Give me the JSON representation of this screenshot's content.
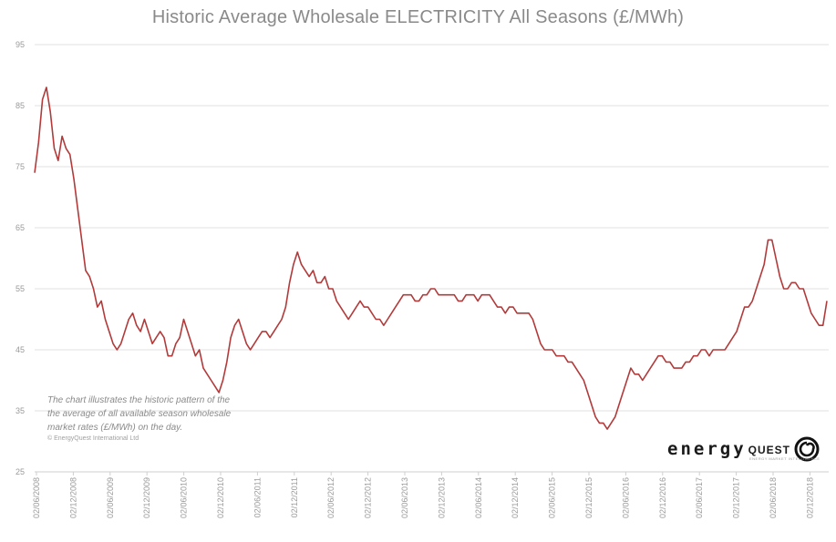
{
  "chart_data": {
    "type": "line",
    "title": "Historic Average Wholesale ELECTRICITY All Seasons (£/MWh)",
    "xlabel": "",
    "ylabel": "",
    "ylim": [
      25,
      95
    ],
    "yticks": [
      95,
      85,
      75,
      65,
      55,
      45,
      35,
      25
    ],
    "grid": true,
    "legend": "none",
    "line_color": "#b23a3a",
    "xticks": [
      "02/06/2008",
      "02/12/2008",
      "02/06/2009",
      "02/12/2009",
      "02/06/2010",
      "02/12/2010",
      "02/06/2011",
      "02/12/2011",
      "02/06/2012",
      "02/12/2012",
      "02/06/2013",
      "02/12/2013",
      "02/06/2014",
      "02/12/2014",
      "02/06/2015",
      "02/12/2015",
      "02/06/2016",
      "02/12/2016",
      "02/06/2017",
      "02/12/2017",
      "02/06/2018",
      "02/12/2018"
    ],
    "series": [
      {
        "x_start": "2008-06-02",
        "x_end": "2019-05-01",
        "values": [
          74,
          79,
          86,
          88,
          84,
          78,
          76,
          80,
          78,
          77,
          73,
          68,
          63,
          58,
          57,
          55,
          52,
          53,
          50,
          48,
          46,
          45,
          46,
          48,
          50,
          51,
          49,
          48,
          50,
          48,
          46,
          47,
          48,
          47,
          44,
          44,
          46,
          47,
          50,
          48,
          46,
          44,
          45,
          42,
          41,
          40,
          39,
          38,
          40,
          43,
          47,
          49,
          50,
          48,
          46,
          45,
          46,
          47,
          48,
          48,
          47,
          48,
          49,
          50,
          52,
          56,
          59,
          61,
          59,
          58,
          57,
          58,
          56,
          56,
          57,
          55,
          55,
          53,
          52,
          51,
          50,
          51,
          52,
          53,
          52,
          52,
          51,
          50,
          50,
          49,
          50,
          51,
          52,
          53,
          54,
          54,
          54,
          53,
          53,
          54,
          54,
          55,
          55,
          54,
          54,
          54,
          54,
          54,
          53,
          53,
          54,
          54,
          54,
          53,
          54,
          54,
          54,
          53,
          52,
          52,
          51,
          52,
          52,
          51,
          51,
          51,
          51,
          50,
          48,
          46,
          45,
          45,
          45,
          44,
          44,
          44,
          43,
          43,
          42,
          41,
          40,
          38,
          36,
          34,
          33,
          33,
          32,
          33,
          34,
          36,
          38,
          40,
          42,
          41,
          41,
          40,
          41,
          42,
          43,
          44,
          44,
          43,
          43,
          42,
          42,
          42,
          43,
          43,
          44,
          44,
          45,
          45,
          44,
          45,
          45,
          45,
          45,
          46,
          47,
          48,
          50,
          52,
          52,
          53,
          55,
          57,
          59,
          63,
          63,
          60,
          57,
          55,
          55,
          56,
          56,
          55,
          55,
          53,
          51,
          50,
          49,
          49,
          53
        ]
      }
    ]
  },
  "note": {
    "text": "The chart illustrates the historic pattern of the the average of all available season wholesale market rates (£/MWh) on the day.",
    "copyright": "© EnergyQuest International Ltd"
  },
  "logo": {
    "word1": "energy",
    "word2": "QUEST",
    "tagline": "ENERGY MARKET INTELLIGENCE"
  }
}
